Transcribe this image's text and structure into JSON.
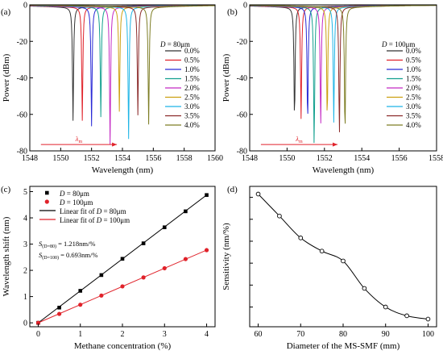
{
  "chart_data": [
    {
      "panel": "(a)",
      "type": "line",
      "xlabel": "Wavelength (nm)",
      "ylabel": "Power (dBm)",
      "xlim": [
        1548,
        1560
      ],
      "ylim": [
        -80,
        0
      ],
      "xticks": [
        "1548",
        "1550",
        "1552",
        "1554",
        "1556",
        "1558",
        "1560"
      ],
      "yticks": [
        "0",
        "-20",
        "-40",
        "-60",
        "-80"
      ],
      "legend_title": "D = 80μm",
      "legend_position": "right",
      "arrow_label": "λ_m",
      "series": [
        {
          "name": "0.0%",
          "color": "#333333",
          "dip_nm": 1550.8,
          "dip_dbm": -62
        },
        {
          "name": "0.5%",
          "color": "#e0222a",
          "dip_nm": 1551.4,
          "dip_dbm": -62
        },
        {
          "name": "1.0%",
          "color": "#2a2ad6",
          "dip_nm": 1552.0,
          "dip_dbm": -65
        },
        {
          "name": "1.5%",
          "color": "#13a08f",
          "dip_nm": 1552.6,
          "dip_dbm": -60
        },
        {
          "name": "2.0%",
          "color": "#c42ac4",
          "dip_nm": 1553.2,
          "dip_dbm": -75
        },
        {
          "name": "2.5%",
          "color": "#cca010",
          "dip_nm": 1553.8,
          "dip_dbm": -57
        },
        {
          "name": "3.0%",
          "color": "#1fb5e6",
          "dip_nm": 1554.4,
          "dip_dbm": -72
        },
        {
          "name": "3.5%",
          "color": "#8b2a2a",
          "dip_nm": 1555.0,
          "dip_dbm": -59
        },
        {
          "name": "4.0%",
          "color": "#7d7d24",
          "dip_nm": 1555.7,
          "dip_dbm": -64
        }
      ]
    },
    {
      "panel": "(b)",
      "type": "line",
      "xlabel": "Wavelength (nm)",
      "ylabel": "Power (dBm)",
      "xlim": [
        1548,
        1558
      ],
      "ylim": [
        -80,
        0
      ],
      "xticks": [
        "1548",
        "1550",
        "1552",
        "1554",
        "1556",
        "1558"
      ],
      "yticks": [
        "0",
        "-20",
        "-40",
        "-60",
        "-80"
      ],
      "legend_title": "D = 100μm",
      "legend_position": "right",
      "arrow_label": "λ_m",
      "series": [
        {
          "name": "0.0%",
          "color": "#333333",
          "dip_nm": 1550.4,
          "dip_dbm": -62
        },
        {
          "name": "0.5%",
          "color": "#e0222a",
          "dip_nm": 1550.75,
          "dip_dbm": -61
        },
        {
          "name": "1.0%",
          "color": "#2a2ad6",
          "dip_nm": 1551.1,
          "dip_dbm": -64
        },
        {
          "name": "1.5%",
          "color": "#13a08f",
          "dip_nm": 1551.45,
          "dip_dbm": -76
        },
        {
          "name": "2.0%",
          "color": "#c42ac4",
          "dip_nm": 1551.8,
          "dip_dbm": -65
        },
        {
          "name": "2.5%",
          "color": "#cca010",
          "dip_nm": 1552.15,
          "dip_dbm": -62
        },
        {
          "name": "3.0%",
          "color": "#1fb5e6",
          "dip_nm": 1552.5,
          "dip_dbm": -63
        },
        {
          "name": "3.5%",
          "color": "#8b2a2a",
          "dip_nm": 1552.8,
          "dip_dbm": -70
        },
        {
          "name": "4.0%",
          "color": "#7d7d24",
          "dip_nm": 1553.1,
          "dip_dbm": -70
        }
      ]
    },
    {
      "panel": "(c)",
      "type": "scatter",
      "xlabel": "Methane concentration (%)",
      "ylabel": "Wavelength shift (nm)",
      "xlim": [
        -0.2,
        4.2
      ],
      "ylim": [
        -0.15,
        5.2
      ],
      "xticks": [
        "0",
        "1",
        "2",
        "3",
        "4"
      ],
      "yticks": [
        "0",
        "1",
        "2",
        "3",
        "4",
        "5"
      ],
      "legend_position": "top-left",
      "x": [
        0,
        0.5,
        1.0,
        1.5,
        2.0,
        2.5,
        3.0,
        3.5,
        4.0
      ],
      "series": [
        {
          "name": "D = 80μm",
          "marker": "square",
          "color": "#000000",
          "values": [
            0,
            0.58,
            1.22,
            1.82,
            2.44,
            3.03,
            3.64,
            4.25,
            4.87
          ]
        },
        {
          "name": "D = 100μm",
          "marker": "circle",
          "color": "#e0222a",
          "values": [
            0,
            0.34,
            0.69,
            1.04,
            1.39,
            1.73,
            2.08,
            2.43,
            2.77
          ]
        }
      ],
      "fits": [
        {
          "name": "Linear fit of D = 80μm",
          "color": "#000000",
          "slope": 1.218,
          "intercept": 0
        },
        {
          "name": "Linear fit of D = 100μm",
          "color": "#e0222a",
          "slope": 0.693,
          "intercept": 0
        }
      ],
      "annotations": [
        {
          "label": "S",
          "sub": "(D=80)",
          "text": " = 1.218nm/%"
        },
        {
          "label": "S",
          "sub": "(D=100)",
          "text": " = 0.693nm/%"
        }
      ]
    },
    {
      "panel": "(d)",
      "type": "line",
      "xlabel": "Diameter of the MS-SMF (mm)",
      "ylabel": "Sensitivity (nm/%)",
      "xlim": [
        58,
        102
      ],
      "ylim": [
        0.62,
        1.9
      ],
      "xticks": [
        "60",
        "70",
        "80",
        "90",
        "100"
      ],
      "x": [
        60,
        65,
        70,
        75,
        80,
        85,
        90,
        95,
        100
      ],
      "series": [
        {
          "color": "#000000",
          "values": [
            1.83,
            1.63,
            1.43,
            1.31,
            1.22,
            0.97,
            0.8,
            0.72,
            0.69
          ]
        }
      ]
    }
  ]
}
